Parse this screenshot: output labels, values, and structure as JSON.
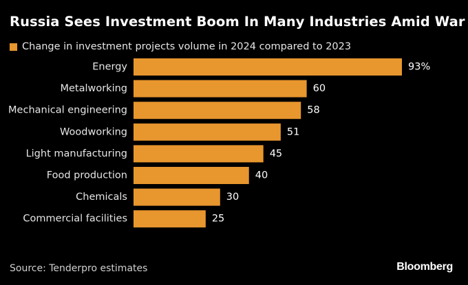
{
  "chart_data": {
    "type": "bar",
    "orientation": "horizontal",
    "title": "Russia Sees Investment Boom In Many Industries Amid War",
    "legend": [
      {
        "label": "Change in investment projects volume in 2024 compared to 2023",
        "color": "#E8962E"
      }
    ],
    "categories": [
      "Energy",
      "Metalworking",
      "Mechanical engineering",
      "Woodworking",
      "Light manufacturing",
      "Food production",
      "Chemicals",
      "Commercial facilities"
    ],
    "values": [
      93,
      60,
      58,
      51,
      45,
      40,
      30,
      25
    ],
    "value_labels": [
      "93%",
      "60",
      "58",
      "51",
      "45",
      "40",
      "30",
      "25"
    ],
    "xlim": [
      0,
      93
    ],
    "grid": false,
    "legend_position": "top-left"
  },
  "footer": {
    "source": "Source: Tenderpro estimates",
    "brand": "Bloomberg"
  },
  "colors": {
    "bar": "#E8962E",
    "background": "#000000"
  }
}
